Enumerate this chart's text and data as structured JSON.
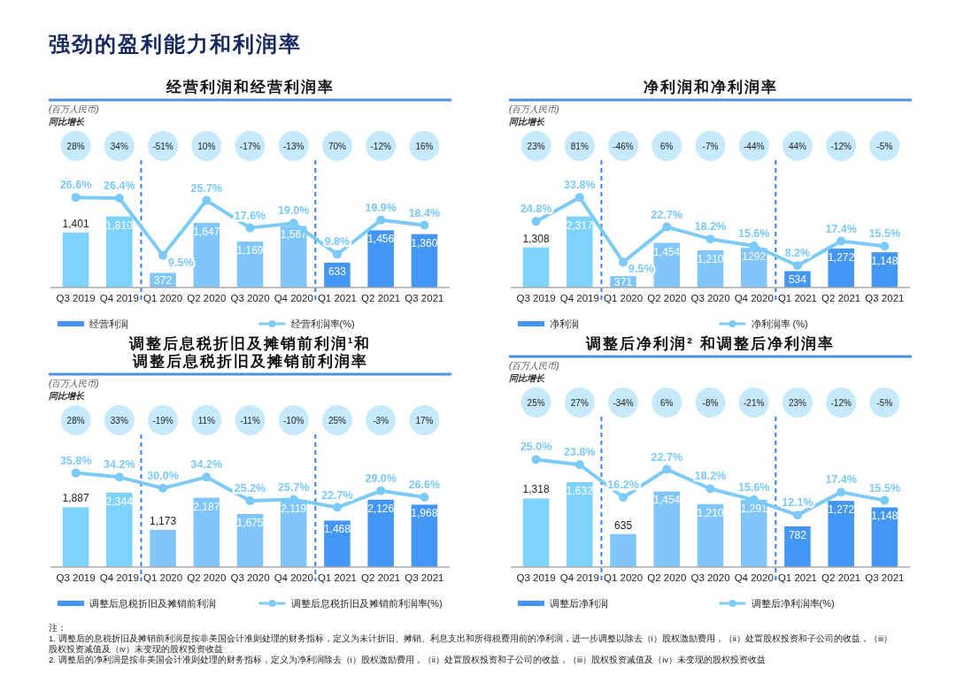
{
  "chart_data": [
    {
      "type": "other",
      "title": "强劲的盈利能力和利润率",
      "annotations": [
        "注：",
        "1. 调整后的息税折旧及摊销前利润是按非美国会计准则处理的财务指标，定义为未计折旧、摊销、利息支出和所得税费用前的净利润，进一步调整以除去（i）股权激励费用，（ii）处置股权投资和子公司的收益，（iii）股权投资减值及（iv）未变现的股权投资收益",
        "2. 调整后的净利润是按非美国会计准则处理的财务指标，定义为净利润除去（i）股权激励费用，（ii）处置股权投资和子公司的收益，（iii）股权投资减值及（iv）未变现的股权投资收益"
      ]
    },
    {
      "type": "bar",
      "title": "经营利润和经营利润率",
      "categories": [
        "Q3 2019",
        "Q4 2019",
        "Q1 2020",
        "Q2 2020",
        "Q3 2020",
        "Q4 2020",
        "Q1 2021",
        "Q2 2021",
        "Q3 2021"
      ],
      "legend": "bottom",
      "marker": "circle",
      "series": [
        {
          "name": "经营利润",
          "type": "bar",
          "colors": [
            "#7dd3fb",
            "#7dd3fb",
            "#80c6fb",
            "#80c6fb",
            "#80c6fb",
            "#80c6fb",
            "#4496f5",
            "#4496f5",
            "#4496f5"
          ],
          "values": [
            1401,
            1810,
            372,
            1647,
            1169,
            1567,
            633,
            1456,
            1360
          ],
          "value_labels": [
            "1,401",
            "1,810",
            "372",
            "1,647",
            "1,169",
            "1,567",
            "633",
            "1,456",
            "1,360"
          ]
        },
        {
          "name": "经营利润率(%)",
          "type": "line",
          "axis": "y2",
          "color": "#7ccaf8",
          "values": [
            26.6,
            26.4,
            9.5,
            25.7,
            17.6,
            19.0,
            9.8,
            19.9,
            18.4
          ],
          "value_labels": [
            "26.6%",
            "26.4%",
            "9.5%",
            "25.7%",
            "17.6%",
            "19.0%",
            "9.8%",
            "19.9%",
            "18.4%"
          ]
        }
      ],
      "annotations": [
        "(百万人民币)",
        "同比增长",
        "28%",
        "34%",
        "-51%",
        "10%",
        "-17%",
        "-13%",
        "70%",
        "-12%",
        "16%"
      ]
    },
    {
      "type": "bar",
      "title": "净利润和净利润率",
      "categories": [
        "Q3 2019",
        "Q4 2019",
        "Q1 2020",
        "Q2 2020",
        "Q3 2020",
        "Q4 2020",
        "Q1 2021",
        "Q2 2021",
        "Q3 2021"
      ],
      "legend": "bottom",
      "marker": "circle",
      "series": [
        {
          "name": "净利润",
          "type": "bar",
          "colors": [
            "#7dd3fb",
            "#7dd3fb",
            "#80c6fb",
            "#80c6fb",
            "#80c6fb",
            "#80c6fb",
            "#4496f5",
            "#4496f5",
            "#4496f5"
          ],
          "values": [
            1308,
            2317,
            371,
            1454,
            1210,
            1292,
            534,
            1272,
            1148
          ],
          "value_labels": [
            "1,308",
            "2,317",
            "371",
            "1,454",
            "1,210",
            "1292",
            "534",
            "1,272",
            "1,148"
          ]
        },
        {
          "name": "净利润率 (%)",
          "type": "line",
          "axis": "y2",
          "color": "#7ccaf8",
          "values": [
            24.8,
            33.8,
            9.5,
            22.7,
            18.2,
            15.6,
            8.2,
            17.4,
            15.5
          ],
          "value_labels": [
            "24.8%",
            "33.8%",
            "9.5%",
            "22.7%",
            "18.2%",
            "15.6%",
            "8.2%",
            "17.4%",
            "15.5%"
          ]
        }
      ],
      "annotations": [
        "(百万人民币)",
        "同比增长",
        "23%",
        "81%",
        "-46%",
        "6%",
        "-7%",
        "-44%",
        "44%",
        "-12%",
        "-5%"
      ]
    },
    {
      "type": "bar",
      "title": "调整后息税折旧及摊销前利润¹和调整后息税折旧及摊销前利润率",
      "categories": [
        "Q3 2019",
        "Q4 2019",
        "Q1 2020",
        "Q2 2020",
        "Q3 2020",
        "Q4 2020",
        "Q1 2021",
        "Q2 2021",
        "Q3 2021"
      ],
      "legend": "bottom",
      "marker": "circle",
      "series": [
        {
          "name": "调整后息税折旧及摊销前利润",
          "type": "bar",
          "colors": [
            "#7dd3fb",
            "#7dd3fb",
            "#80c6fb",
            "#80c6fb",
            "#80c6fb",
            "#80c6fb",
            "#4496f5",
            "#4496f5",
            "#4496f5"
          ],
          "values": [
            1887,
            2344,
            1173,
            2187,
            1675,
            2119,
            1468,
            2126,
            1968
          ],
          "value_labels": [
            "1,887",
            "2,344",
            "1,173",
            "2,187",
            "1,675",
            "2,119",
            "1,468",
            "2,126",
            "1,968"
          ]
        },
        {
          "name": "调整后息税折旧及摊销前利润率(%)",
          "type": "line",
          "axis": "y2",
          "color": "#7ccaf8",
          "values": [
            35.8,
            34.2,
            30.0,
            34.2,
            25.2,
            25.7,
            22.7,
            29.0,
            26.6
          ],
          "value_labels": [
            "35.8%",
            "34.2%",
            "30.0%",
            "34.2%",
            "25.2%",
            "25.7%",
            "22.7%",
            "29.0%",
            "26.6%"
          ]
        }
      ],
      "annotations": [
        "(百万人民币)",
        "同比增长",
        "28%",
        "33%",
        "-19%",
        "11%",
        "-11%",
        "-10%",
        "25%",
        "-3%",
        "17%"
      ]
    },
    {
      "type": "bar",
      "title": "调整后净利润² 和调整后净利润率",
      "categories": [
        "Q3 2019",
        "Q4 2019",
        "Q1 2020",
        "Q2 2020",
        "Q3 2020",
        "Q4 2020",
        "Q1 2021",
        "Q2 2021",
        "Q3 2021"
      ],
      "legend": "bottom",
      "marker": "circle",
      "series": [
        {
          "name": "调整后净利润",
          "type": "bar",
          "colors": [
            "#7dd3fb",
            "#7dd3fb",
            "#80c6fb",
            "#80c6fb",
            "#80c6fb",
            "#80c6fb",
            "#4496f5",
            "#4496f5",
            "#4496f5"
          ],
          "values": [
            1318,
            1632,
            635,
            1454,
            1210,
            1291,
            782,
            1272,
            1148
          ],
          "value_labels": [
            "1,318",
            "1,632",
            "635",
            "1,454",
            "1,210",
            "1,291",
            "782",
            "1,272",
            "1,148"
          ]
        },
        {
          "name": "调整后净利润率(%)",
          "type": "line",
          "axis": "y2",
          "color": "#7ccaf8",
          "values": [
            25.0,
            23.8,
            16.2,
            22.7,
            18.2,
            15.6,
            12.1,
            17.4,
            15.5
          ],
          "value_labels": [
            "25.0%",
            "23.8%",
            "16.2%",
            "22.7%",
            "18.2%",
            "15.6%",
            "12.1%",
            "17.4%",
            "15.5%"
          ]
        }
      ],
      "annotations": [
        "(百万人民币)",
        "同比增长",
        "25%",
        "27%",
        "-34%",
        "6%",
        "-8%",
        "-21%",
        "23%",
        "-12%",
        "-5%"
      ]
    }
  ]
}
